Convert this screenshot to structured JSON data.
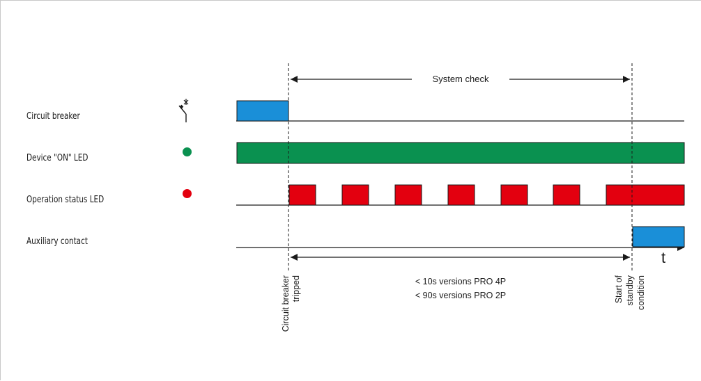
{
  "rows": [
    {
      "label": "Circuit breaker",
      "icon": "circuit-breaker-switch-icon"
    },
    {
      "label": "Device \"ON\" LED",
      "icon": "green-dot-icon",
      "color": "#0a9150"
    },
    {
      "label": "Operation status LED",
      "icon": "red-dot-icon",
      "color": "#e3000f"
    },
    {
      "label": "Auxiliary contact"
    }
  ],
  "colors": {
    "blue": "#1a8fd8",
    "green": "#0a9150",
    "red": "#e3000f",
    "line": "#1a1a1a"
  },
  "system_check_label": "System check",
  "time_axis_label": "t",
  "duration": {
    "line1": "< 10s versions PRO 4P",
    "line2": "< 90s versions PRO 2P"
  },
  "markers": {
    "tripped": {
      "line1": "Circuit breaker",
      "line2": "tripped"
    },
    "standby": {
      "line1": "Start of",
      "line2": "standby",
      "line3": "condition"
    }
  }
}
